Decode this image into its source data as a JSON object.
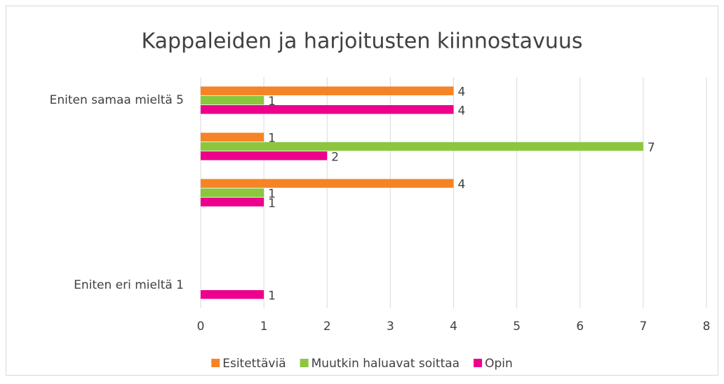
{
  "chart_data": {
    "type": "bar",
    "orientation": "horizontal",
    "title": "Kappaleiden ja harjoitusten kiinnostavuus",
    "categories": [
      "Eniten eri mieltä 1",
      null,
      null,
      null,
      "Eniten samaa mieltä 5"
    ],
    "series": [
      {
        "name": "Esitettäviä",
        "color": "#f58426",
        "values": [
          null,
          null,
          4,
          1,
          4
        ]
      },
      {
        "name": "Muutkin haluavat soittaa",
        "color": "#8cc63f",
        "values": [
          null,
          null,
          1,
          7,
          1
        ]
      },
      {
        "name": "Opin",
        "color": "#ec008c",
        "values": [
          1,
          null,
          1,
          2,
          4
        ]
      }
    ],
    "xlim": [
      0,
      8
    ],
    "xticks": [
      0,
      1,
      2,
      3,
      4,
      5,
      6,
      7,
      8
    ],
    "grid": true,
    "legend": "bottom"
  }
}
